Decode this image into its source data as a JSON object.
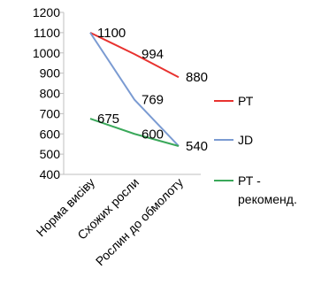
{
  "chart_data": {
    "type": "line",
    "categories": [
      "Норма висіву",
      "Схожих росли",
      "Рослин до обмолоту"
    ],
    "ylim": [
      400,
      1200
    ],
    "ystep": 100,
    "yticks": [
      "400",
      "500",
      "600",
      "700",
      "800",
      "900",
      "1000",
      "1100",
      "1200"
    ],
    "grid": false,
    "legend_position": "right",
    "series": [
      {
        "name": "РТ",
        "color": "#e8322f",
        "values": [
          1100,
          994,
          880
        ],
        "labels": [
          "",
          "994",
          "880"
        ]
      },
      {
        "name": "JD",
        "color": "#7b9bd2",
        "values": [
          1100,
          769,
          540
        ],
        "labels": [
          "1100",
          "769",
          "540"
        ]
      },
      {
        "name": "РТ - рекоменд.",
        "legend_lines": [
          "РТ -",
          "рекоменд."
        ],
        "color": "#3aa85a",
        "values": [
          675,
          600,
          540
        ],
        "labels": [
          "675",
          "600",
          ""
        ]
      }
    ]
  }
}
